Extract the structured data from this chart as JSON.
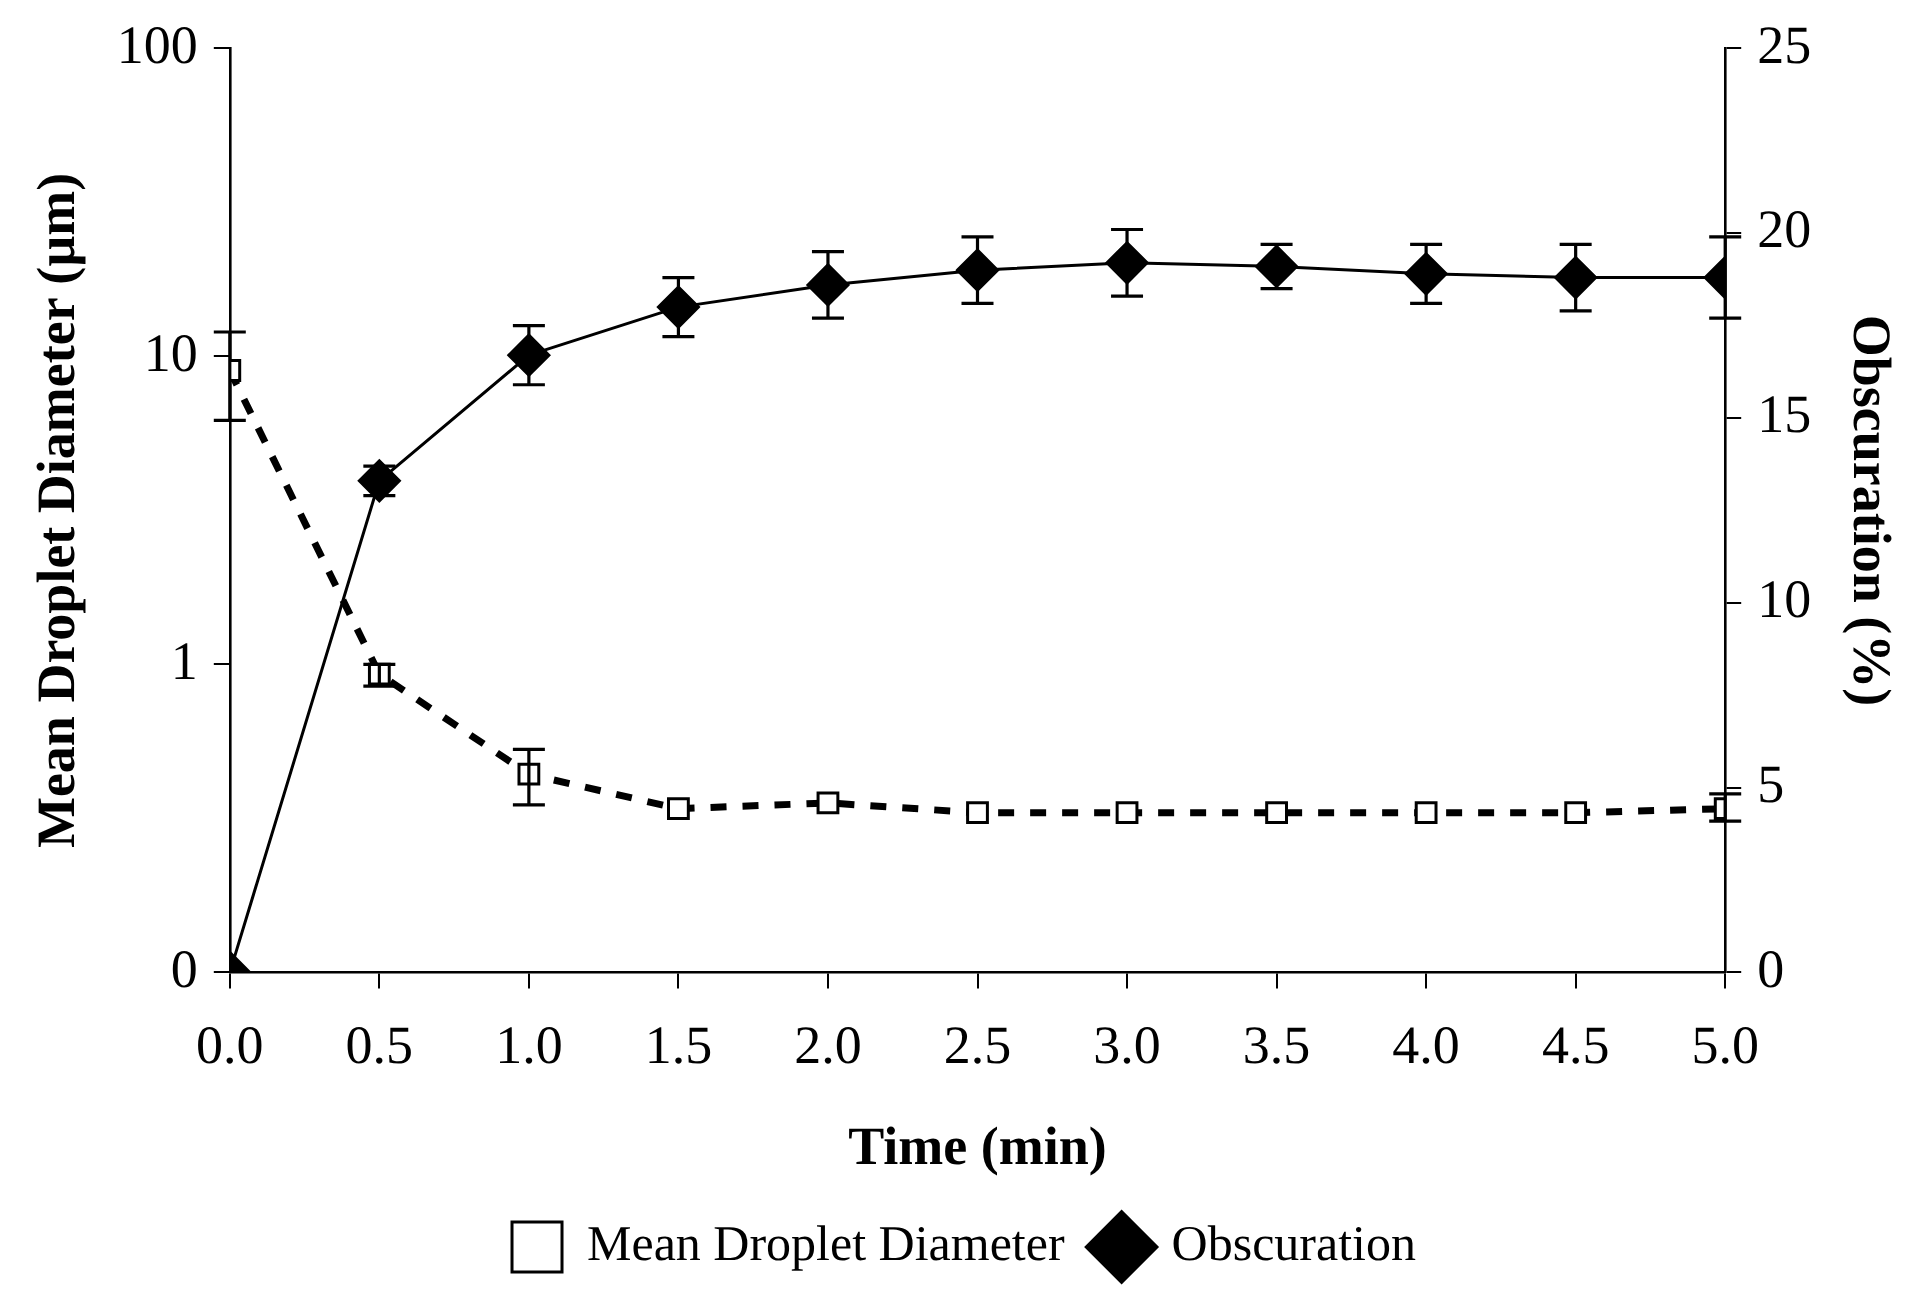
{
  "chart_data": {
    "type": "line",
    "xlabel": "Time (min)",
    "ylabel": "Mean Droplet Diameter (µm)",
    "y2label": "Obscuration (%)",
    "x": [
      0,
      0.5,
      1,
      1.5,
      2,
      2.5,
      3,
      3.5,
      4,
      4.5,
      5
    ],
    "xlim": [
      0,
      5
    ],
    "xticks": [
      {
        "value": 0,
        "label": "0.0"
      },
      {
        "value": 0.5,
        "label": "0.5"
      },
      {
        "value": 1,
        "label": "1.0"
      },
      {
        "value": 1.5,
        "label": "1.5"
      },
      {
        "value": 2,
        "label": "2.0"
      },
      {
        "value": 2.5,
        "label": "2.5"
      },
      {
        "value": 3,
        "label": "3.0"
      },
      {
        "value": 3.5,
        "label": "3.5"
      },
      {
        "value": 4,
        "label": "4.0"
      },
      {
        "value": 4.5,
        "label": "4.5"
      },
      {
        "value": 5,
        "label": "5.0"
      }
    ],
    "log": "y",
    "ylim": [
      0.1,
      100
    ],
    "yticks": [
      {
        "value": 0.1,
        "label": "0"
      },
      1,
      10,
      100
    ],
    "y2lim": [
      0,
      25
    ],
    "y2ticks": [
      0,
      5,
      10,
      15,
      20,
      25
    ],
    "grid": false,
    "legend": "bottom",
    "series": [
      {
        "name": "Mean Droplet Diameter",
        "color": "#000000",
        "marker": "square",
        "line_style": "dashed",
        "axis": "y",
        "values": [
          9,
          0.93,
          0.44,
          0.34,
          0.355,
          0.33,
          0.33,
          0.33,
          0.33,
          0.33,
          0.34
        ],
        "errors": [
          [
            6.2,
            12
          ],
          [
            0.85,
            1.0
          ],
          [
            0.35,
            0.53
          ],
          null,
          null,
          null,
          null,
          null,
          null,
          null,
          [
            0.31,
            0.38
          ]
        ]
      },
      {
        "name": "Obscuration",
        "color": "#000000",
        "marker": "diamond",
        "line_style": "solid",
        "axis": "y2",
        "values": [
          0,
          13.3,
          16.7,
          18,
          18.6,
          19,
          19.2,
          19.1,
          18.9,
          18.8,
          18.8
        ],
        "errors": [
          null,
          0.4,
          0.8,
          0.8,
          0.9,
          0.9,
          0.9,
          0.6,
          0.8,
          0.9,
          1.1
        ]
      }
    ]
  }
}
